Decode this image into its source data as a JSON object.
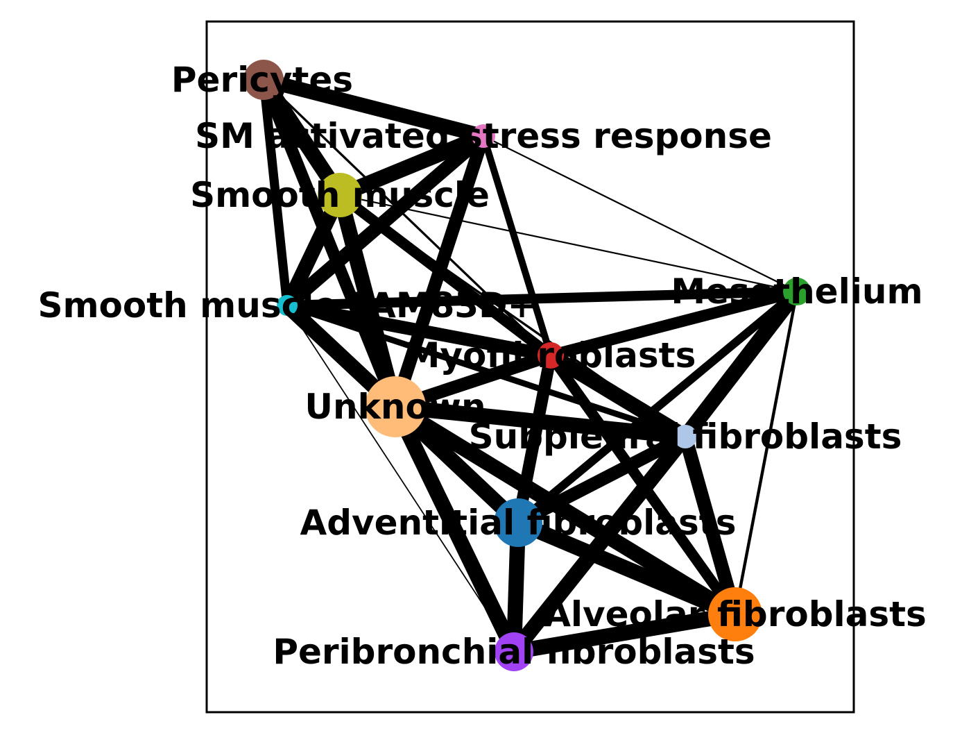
{
  "chart_data": {
    "type": "network",
    "nodes": [
      {
        "id": "pericytes",
        "label": "Pericytes",
        "color": "#8c564b"
      },
      {
        "id": "sm_stress",
        "label": "SM activated stress response",
        "color": "#e377c2"
      },
      {
        "id": "smooth_muscle",
        "label": "Smooth muscle",
        "color": "#bcbd22"
      },
      {
        "id": "sm_fam83d",
        "label": "Smooth muscle FAM83D+",
        "color": "#17becf"
      },
      {
        "id": "mesothelium",
        "label": "Mesothelium",
        "color": "#2ca02c"
      },
      {
        "id": "myofibroblasts",
        "label": "Myofibroblasts",
        "color": "#d62728"
      },
      {
        "id": "unknown",
        "label": "Unknown",
        "color": "#ffbb78"
      },
      {
        "id": "subpleural",
        "label": "Subpleural fibroblasts",
        "color": "#aec7e8"
      },
      {
        "id": "adventitial",
        "label": "Adventitial fibroblasts",
        "color": "#1f77b4"
      },
      {
        "id": "alveolar",
        "label": "Alveolar fibroblasts",
        "color": "#ff7f0e"
      },
      {
        "id": "peribronchial",
        "label": "Peribronchial fibroblasts",
        "color": "#a142f4"
      }
    ],
    "edges": [
      {
        "source": "pericytes",
        "target": "sm_stress",
        "weight": 0.95
      },
      {
        "source": "pericytes",
        "target": "smooth_muscle",
        "weight": 1.0
      },
      {
        "source": "pericytes",
        "target": "sm_fam83d",
        "weight": 0.6
      },
      {
        "source": "pericytes",
        "target": "unknown",
        "weight": 0.8
      },
      {
        "source": "pericytes",
        "target": "myofibroblasts",
        "weight": 0.15
      },
      {
        "source": "sm_stress",
        "target": "smooth_muscle",
        "weight": 1.0
      },
      {
        "source": "sm_stress",
        "target": "sm_fam83d",
        "weight": 0.9
      },
      {
        "source": "sm_stress",
        "target": "unknown",
        "weight": 0.85
      },
      {
        "source": "sm_stress",
        "target": "myofibroblasts",
        "weight": 0.45
      },
      {
        "source": "sm_stress",
        "target": "mesothelium",
        "weight": 0.1
      },
      {
        "source": "smooth_muscle",
        "target": "sm_fam83d",
        "weight": 0.95
      },
      {
        "source": "smooth_muscle",
        "target": "unknown",
        "weight": 1.0
      },
      {
        "source": "smooth_muscle",
        "target": "myofibroblasts",
        "weight": 0.7
      },
      {
        "source": "smooth_muscle",
        "target": "mesothelium",
        "weight": 0.1
      },
      {
        "source": "smooth_muscle",
        "target": "subpleural",
        "weight": 0.15
      },
      {
        "source": "sm_fam83d",
        "target": "mesothelium",
        "weight": 0.65
      },
      {
        "source": "sm_fam83d",
        "target": "myofibroblasts",
        "weight": 0.85
      },
      {
        "source": "sm_fam83d",
        "target": "unknown",
        "weight": 1.0
      },
      {
        "source": "sm_fam83d",
        "target": "subpleural",
        "weight": 0.4
      },
      {
        "source": "sm_fam83d",
        "target": "peribronchial",
        "weight": 0.08
      },
      {
        "source": "mesothelium",
        "target": "myofibroblasts",
        "weight": 0.75
      },
      {
        "source": "mesothelium",
        "target": "subpleural",
        "weight": 1.0
      },
      {
        "source": "mesothelium",
        "target": "adventitial",
        "weight": 0.55
      },
      {
        "source": "mesothelium",
        "target": "alveolar",
        "weight": 0.2
      },
      {
        "source": "myofibroblasts",
        "target": "unknown",
        "weight": 0.85
      },
      {
        "source": "myofibroblasts",
        "target": "subpleural",
        "weight": 1.0
      },
      {
        "source": "myofibroblasts",
        "target": "adventitial",
        "weight": 0.8
      },
      {
        "source": "myofibroblasts",
        "target": "alveolar",
        "weight": 0.7
      },
      {
        "source": "unknown",
        "target": "subpleural",
        "weight": 1.0
      },
      {
        "source": "unknown",
        "target": "adventitial",
        "weight": 1.0
      },
      {
        "source": "unknown",
        "target": "alveolar",
        "weight": 1.0
      },
      {
        "source": "unknown",
        "target": "peribronchial",
        "weight": 1.0
      },
      {
        "source": "subpleural",
        "target": "adventitial",
        "weight": 0.85
      },
      {
        "source": "subpleural",
        "target": "alveolar",
        "weight": 0.9
      },
      {
        "source": "subpleural",
        "target": "peribronchial",
        "weight": 1.0
      },
      {
        "source": "adventitial",
        "target": "alveolar",
        "weight": 1.0
      },
      {
        "source": "adventitial",
        "target": "peribronchial",
        "weight": 1.0
      },
      {
        "source": "alveolar",
        "target": "peribronchial",
        "weight": 1.0
      }
    ]
  }
}
